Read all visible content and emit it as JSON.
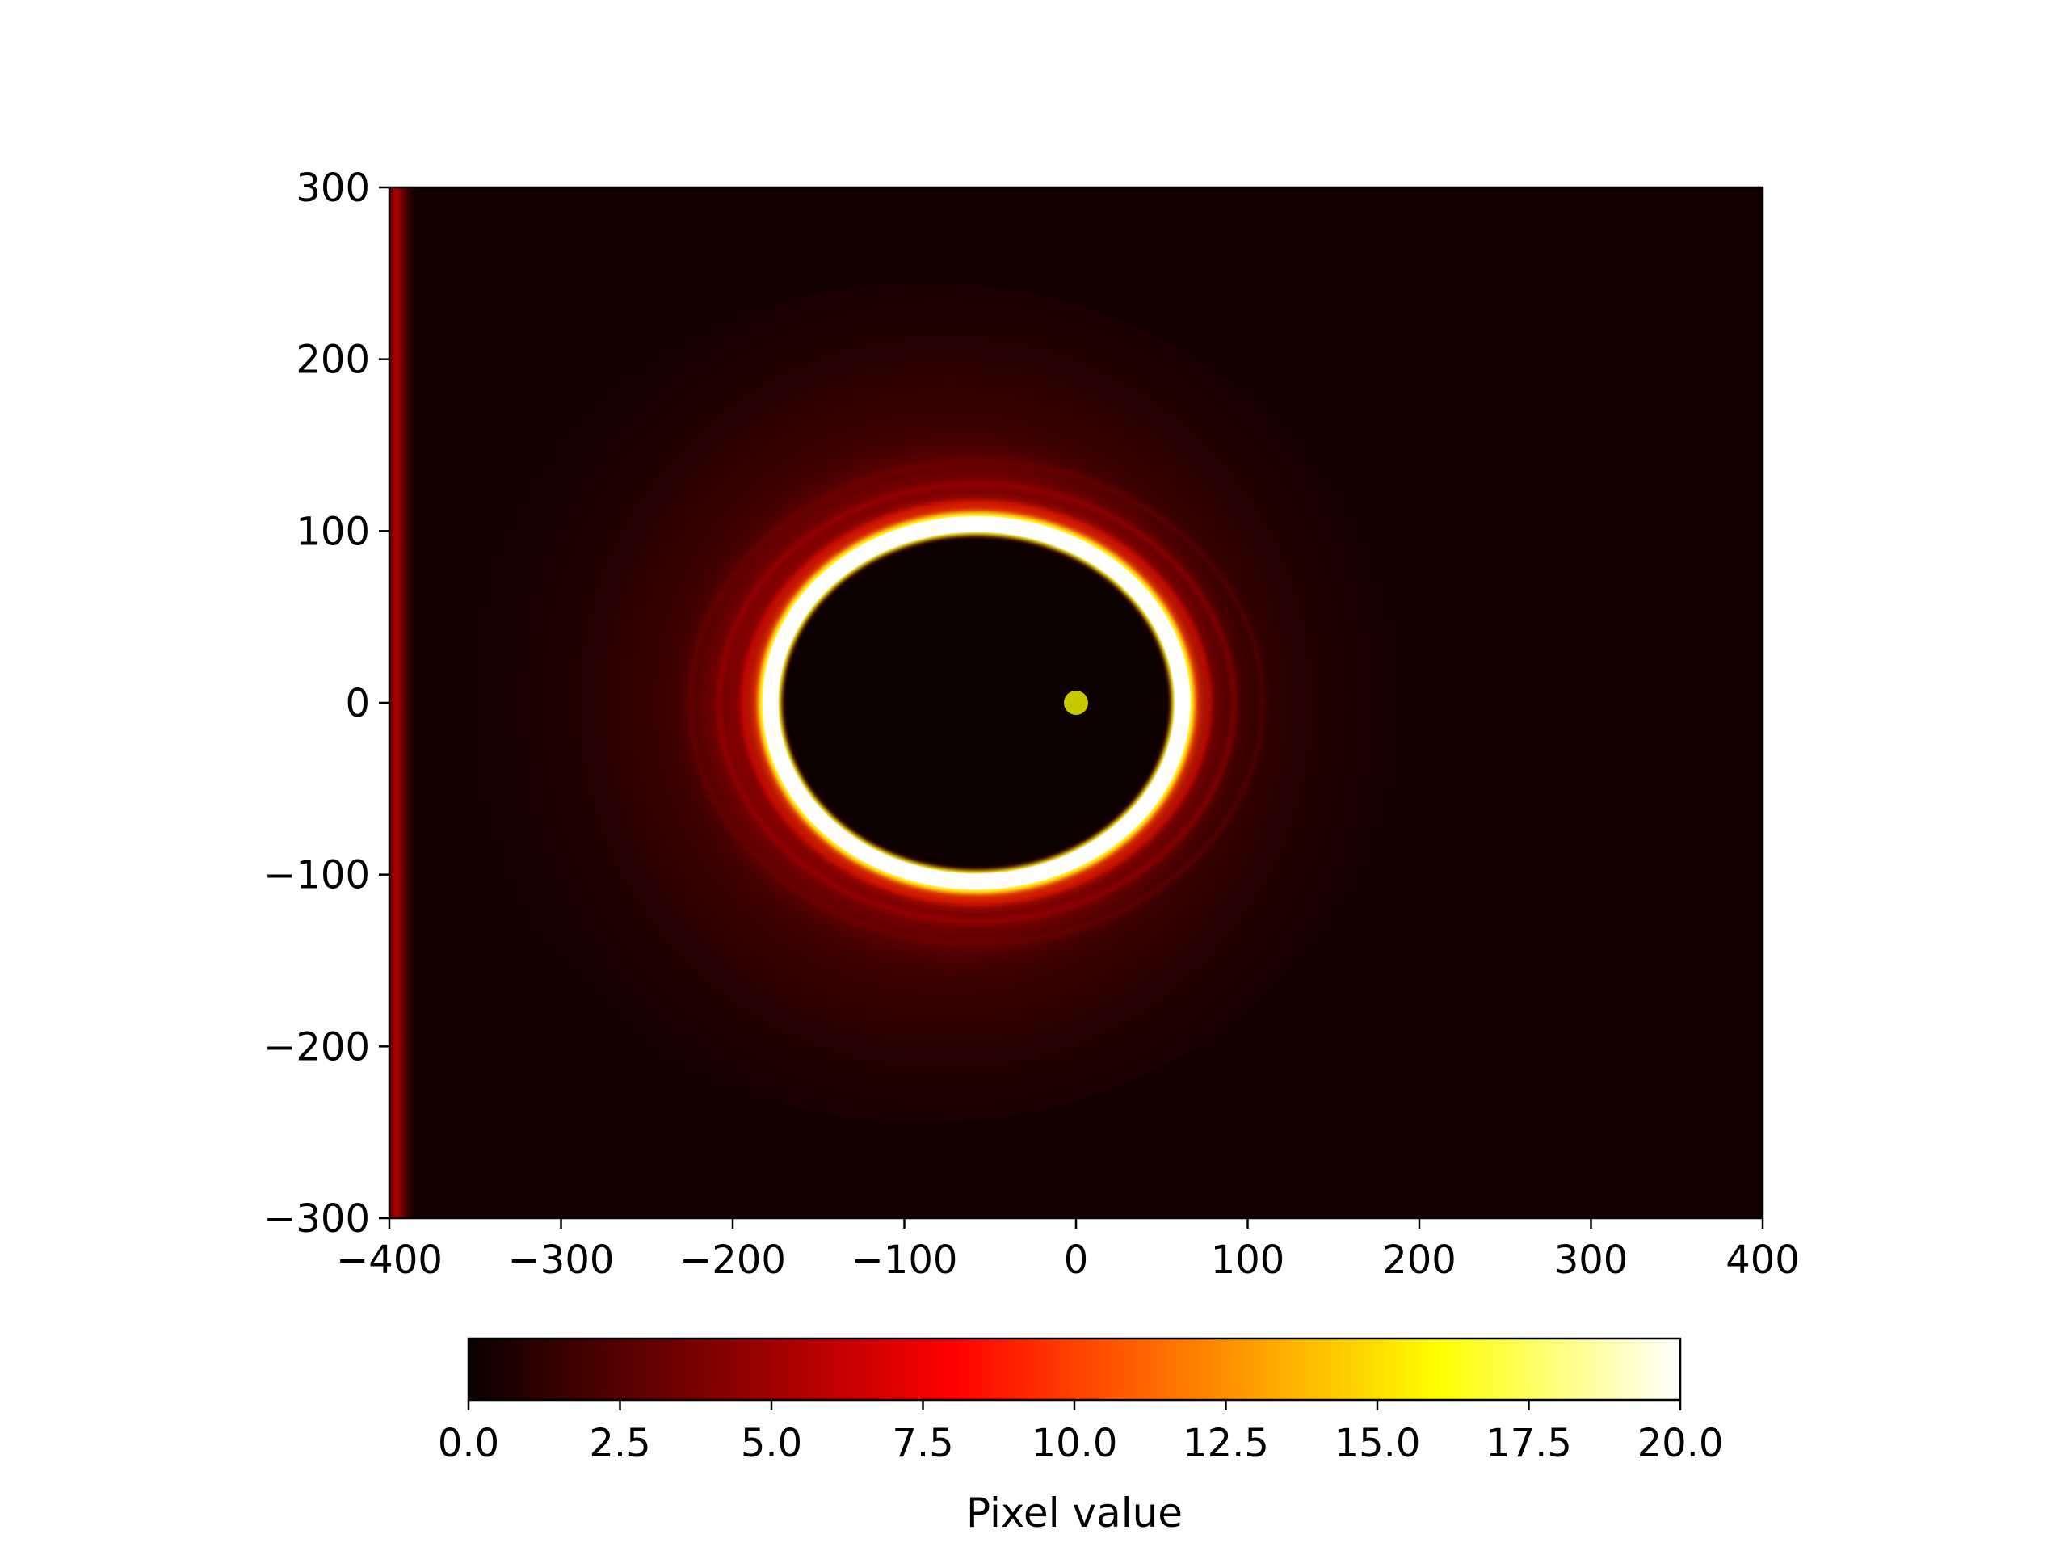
{
  "chart_data": {
    "type": "heatmap",
    "title": "",
    "xlabel": "",
    "ylabel": "",
    "xlim": [
      -400,
      400
    ],
    "ylim": [
      -300,
      300
    ],
    "x_ticks": [
      -400,
      -300,
      -200,
      -100,
      0,
      100,
      200,
      300,
      400
    ],
    "y_ticks": [
      300,
      200,
      100,
      0,
      -100,
      -200,
      -300
    ],
    "x_tick_labels": [
      "−400",
      "−300",
      "−200",
      "−100",
      "0",
      "100",
      "200",
      "300",
      "400"
    ],
    "y_tick_labels": [
      "300",
      "200",
      "100",
      "0",
      "−100",
      "−200",
      "−300"
    ],
    "colormap": "hot",
    "colorbar": {
      "label": "Pixel value",
      "orientation": "horizontal",
      "placement": "bottom",
      "range": [
        0,
        20
      ],
      "ticks": [
        0,
        2.5,
        5,
        7.5,
        10,
        12.5,
        15,
        17.5,
        20
      ],
      "tick_labels": [
        "0.0",
        "2.5",
        "5.0",
        "7.5",
        "10.0",
        "12.5",
        "15.0",
        "17.5",
        "20.0"
      ],
      "stops": [
        "#0b0000",
        "#800000",
        "#ff0000",
        "#ff8000",
        "#ffff00",
        "#ffffff"
      ]
    },
    "ring": {
      "center": [
        -58,
        0
      ],
      "semi_axis_x": 120,
      "semi_axis_y": 104,
      "peak_value": 20,
      "background_value": 0.3
    },
    "edge_glow": {
      "x": -395,
      "value": 5
    },
    "marker": {
      "x": 0,
      "y": 0,
      "color": "#c8c800",
      "shape": "circle"
    },
    "grid": false,
    "legend": "none"
  }
}
